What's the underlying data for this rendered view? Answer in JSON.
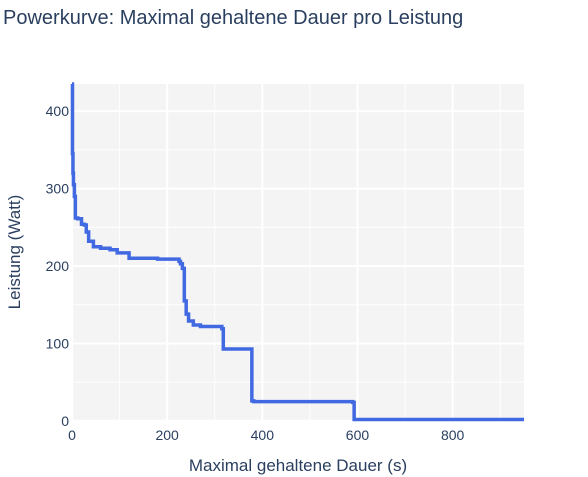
{
  "chart_data": {
    "type": "line",
    "title": "Powerkurve: Maximal gehaltene Dauer pro Leistung",
    "xlabel": "Maximal gehaltene Dauer (s)",
    "ylabel": "Leistung (Watt)",
    "xlim": [
      0,
      950
    ],
    "ylim": [
      0,
      435
    ],
    "xticks": [
      0,
      200,
      400,
      600,
      800
    ],
    "yticks": [
      0,
      100,
      200,
      300,
      400
    ],
    "x_minor_ticks": [
      100,
      300,
      500,
      700,
      900
    ],
    "y_minor_ticks": [
      50,
      150,
      250,
      350
    ],
    "grid": true,
    "series_color": "#4169e1",
    "plot_background": "#f4f4f4",
    "series": [
      {
        "x": [
          0,
          1,
          1,
          2,
          2,
          3,
          3,
          5,
          5,
          7,
          7,
          12,
          12,
          20,
          20,
          26,
          26,
          30,
          30,
          35,
          35,
          45,
          45,
          60,
          60,
          80,
          80,
          95,
          95,
          120,
          120,
          180,
          180,
          225,
          225,
          228,
          228,
          232,
          232,
          236,
          236,
          240,
          240,
          245,
          245,
          255,
          255,
          270,
          270,
          315,
          315,
          318,
          318,
          378,
          378,
          382,
          382,
          590,
          590,
          593,
          593,
          950
        ],
        "y": [
          435,
          435,
          345,
          345,
          320,
          320,
          305,
          305,
          290,
          290,
          262,
          262,
          261,
          261,
          254,
          254,
          253,
          253,
          244,
          244,
          232,
          232,
          225,
          225,
          223,
          223,
          221,
          221,
          217,
          217,
          210,
          210,
          209,
          209,
          206,
          206,
          203,
          203,
          197,
          197,
          155,
          155,
          138,
          138,
          129,
          129,
          124,
          124,
          122,
          122,
          119,
          119,
          93,
          93,
          26,
          26,
          25,
          25,
          24,
          24,
          2,
          2
        ]
      }
    ]
  }
}
